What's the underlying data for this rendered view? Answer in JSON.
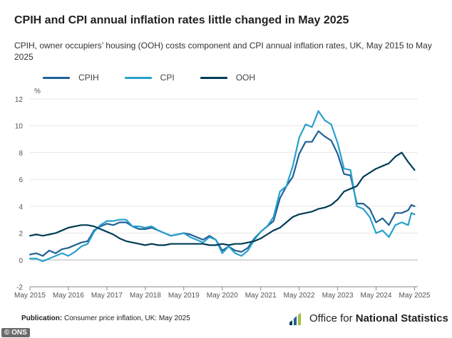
{
  "title": "CPIH and CPI annual inflation rates little changed in May 2025",
  "subtitle": "CPIH, owner occupiers’ housing (OOH) costs component and CPI annual inflation rates, UK, May 2015 to May 2025",
  "footer": {
    "publication_label": "Publication:",
    "publication_text": "Consumer price inflation, UK: May 2025"
  },
  "logo": {
    "name_prefix": "Office for ",
    "name_bold": "National Statistics",
    "icon": "ons-bars-icon"
  },
  "watermark": "© ONS",
  "chart_data": {
    "type": "line",
    "ylabel": "%",
    "ylim": [
      -2,
      12
    ],
    "yticks": [
      -2,
      0,
      2,
      4,
      6,
      8,
      10,
      12
    ],
    "xlim": [
      2015.333,
      2025.417
    ],
    "xticks": [
      {
        "label": "May 2015",
        "t": 2015.333
      },
      {
        "label": "May 2016",
        "t": 2016.333
      },
      {
        "label": "May 2017",
        "t": 2017.333
      },
      {
        "label": "May 2018",
        "t": 2018.333
      },
      {
        "label": "May 2019",
        "t": 2019.333
      },
      {
        "label": "May 2020",
        "t": 2020.333
      },
      {
        "label": "May 2021",
        "t": 2021.333
      },
      {
        "label": "May 2022",
        "t": 2022.333
      },
      {
        "label": "May 2023",
        "t": 2023.333
      },
      {
        "label": "May 2024",
        "t": 2024.333
      },
      {
        "label": "May 2025",
        "t": 2025.333
      }
    ],
    "grid": true,
    "legend_position": "top-left",
    "series": [
      {
        "name": "CPIH",
        "color": "#206095",
        "points": [
          [
            2015.333,
            0.4
          ],
          [
            2015.5,
            0.5
          ],
          [
            2015.667,
            0.3
          ],
          [
            2015.833,
            0.7
          ],
          [
            2016.0,
            0.5
          ],
          [
            2016.167,
            0.8
          ],
          [
            2016.333,
            0.9
          ],
          [
            2016.5,
            1.1
          ],
          [
            2016.667,
            1.3
          ],
          [
            2016.833,
            1.4
          ],
          [
            2017.0,
            2.2
          ],
          [
            2017.167,
            2.5
          ],
          [
            2017.333,
            2.7
          ],
          [
            2017.5,
            2.6
          ],
          [
            2017.667,
            2.8
          ],
          [
            2017.833,
            2.8
          ],
          [
            2018.0,
            2.5
          ],
          [
            2018.167,
            2.3
          ],
          [
            2018.333,
            2.3
          ],
          [
            2018.5,
            2.4
          ],
          [
            2018.667,
            2.2
          ],
          [
            2018.833,
            2.0
          ],
          [
            2019.0,
            1.8
          ],
          [
            2019.167,
            1.9
          ],
          [
            2019.333,
            2.0
          ],
          [
            2019.5,
            1.9
          ],
          [
            2019.667,
            1.7
          ],
          [
            2019.833,
            1.5
          ],
          [
            2020.0,
            1.8
          ],
          [
            2020.167,
            1.5
          ],
          [
            2020.333,
            0.7
          ],
          [
            2020.5,
            1.0
          ],
          [
            2020.667,
            0.7
          ],
          [
            2020.833,
            0.6
          ],
          [
            2021.0,
            0.9
          ],
          [
            2021.167,
            1.6
          ],
          [
            2021.333,
            2.1
          ],
          [
            2021.5,
            2.5
          ],
          [
            2021.667,
            2.9
          ],
          [
            2021.833,
            4.6
          ],
          [
            2022.0,
            5.5
          ],
          [
            2022.167,
            6.2
          ],
          [
            2022.333,
            7.9
          ],
          [
            2022.5,
            8.8
          ],
          [
            2022.667,
            8.8
          ],
          [
            2022.833,
            9.6
          ],
          [
            2023.0,
            9.2
          ],
          [
            2023.167,
            8.9
          ],
          [
            2023.333,
            7.9
          ],
          [
            2023.5,
            6.4
          ],
          [
            2023.667,
            6.3
          ],
          [
            2023.833,
            4.2
          ],
          [
            2024.0,
            4.2
          ],
          [
            2024.167,
            3.8
          ],
          [
            2024.333,
            2.8
          ],
          [
            2024.5,
            3.1
          ],
          [
            2024.667,
            2.6
          ],
          [
            2024.833,
            3.5
          ],
          [
            2025.0,
            3.5
          ],
          [
            2025.167,
            3.7
          ],
          [
            2025.25,
            4.1
          ],
          [
            2025.333,
            4.0
          ]
        ]
      },
      {
        "name": "CPI",
        "color": "#27a0cc",
        "points": [
          [
            2015.333,
            0.1
          ],
          [
            2015.5,
            0.1
          ],
          [
            2015.667,
            -0.1
          ],
          [
            2015.833,
            0.1
          ],
          [
            2016.0,
            0.3
          ],
          [
            2016.167,
            0.5
          ],
          [
            2016.333,
            0.3
          ],
          [
            2016.5,
            0.6
          ],
          [
            2016.667,
            1.0
          ],
          [
            2016.833,
            1.2
          ],
          [
            2017.0,
            2.1
          ],
          [
            2017.167,
            2.6
          ],
          [
            2017.333,
            2.9
          ],
          [
            2017.5,
            2.9
          ],
          [
            2017.667,
            3.0
          ],
          [
            2017.833,
            3.0
          ],
          [
            2018.0,
            2.5
          ],
          [
            2018.167,
            2.5
          ],
          [
            2018.333,
            2.4
          ],
          [
            2018.5,
            2.5
          ],
          [
            2018.667,
            2.2
          ],
          [
            2018.833,
            2.0
          ],
          [
            2019.0,
            1.8
          ],
          [
            2019.167,
            1.9
          ],
          [
            2019.333,
            2.0
          ],
          [
            2019.5,
            1.7
          ],
          [
            2019.667,
            1.5
          ],
          [
            2019.833,
            1.3
          ],
          [
            2020.0,
            1.7
          ],
          [
            2020.167,
            1.5
          ],
          [
            2020.333,
            0.5
          ],
          [
            2020.5,
            1.0
          ],
          [
            2020.667,
            0.5
          ],
          [
            2020.833,
            0.3
          ],
          [
            2021.0,
            0.7
          ],
          [
            2021.167,
            1.5
          ],
          [
            2021.333,
            2.1
          ],
          [
            2021.5,
            2.5
          ],
          [
            2021.667,
            3.2
          ],
          [
            2021.833,
            5.1
          ],
          [
            2022.0,
            5.5
          ],
          [
            2022.167,
            7.0
          ],
          [
            2022.333,
            9.1
          ],
          [
            2022.5,
            10.1
          ],
          [
            2022.667,
            9.9
          ],
          [
            2022.833,
            11.1
          ],
          [
            2023.0,
            10.4
          ],
          [
            2023.167,
            10.1
          ],
          [
            2023.333,
            8.7
          ],
          [
            2023.5,
            6.8
          ],
          [
            2023.667,
            6.7
          ],
          [
            2023.833,
            4.0
          ],
          [
            2024.0,
            3.8
          ],
          [
            2024.167,
            3.2
          ],
          [
            2024.333,
            2.0
          ],
          [
            2024.5,
            2.2
          ],
          [
            2024.667,
            1.7
          ],
          [
            2024.833,
            2.6
          ],
          [
            2025.0,
            2.8
          ],
          [
            2025.167,
            2.6
          ],
          [
            2025.25,
            3.5
          ],
          [
            2025.333,
            3.4
          ]
        ]
      },
      {
        "name": "OOH",
        "color": "#003c57",
        "points": [
          [
            2015.333,
            1.8
          ],
          [
            2015.5,
            1.9
          ],
          [
            2015.667,
            1.8
          ],
          [
            2015.833,
            1.9
          ],
          [
            2016.0,
            2.0
          ],
          [
            2016.167,
            2.2
          ],
          [
            2016.333,
            2.4
          ],
          [
            2016.5,
            2.5
          ],
          [
            2016.667,
            2.6
          ],
          [
            2016.833,
            2.6
          ],
          [
            2017.0,
            2.5
          ],
          [
            2017.167,
            2.3
          ],
          [
            2017.333,
            2.1
          ],
          [
            2017.5,
            1.9
          ],
          [
            2017.667,
            1.6
          ],
          [
            2017.833,
            1.4
          ],
          [
            2018.0,
            1.3
          ],
          [
            2018.167,
            1.2
          ],
          [
            2018.333,
            1.1
          ],
          [
            2018.5,
            1.2
          ],
          [
            2018.667,
            1.1
          ],
          [
            2018.833,
            1.1
          ],
          [
            2019.0,
            1.2
          ],
          [
            2019.167,
            1.2
          ],
          [
            2019.333,
            1.2
          ],
          [
            2019.5,
            1.2
          ],
          [
            2019.667,
            1.2
          ],
          [
            2019.833,
            1.2
          ],
          [
            2020.0,
            1.1
          ],
          [
            2020.167,
            1.1
          ],
          [
            2020.333,
            1.2
          ],
          [
            2020.5,
            1.1
          ],
          [
            2020.667,
            1.2
          ],
          [
            2020.833,
            1.2
          ],
          [
            2021.0,
            1.3
          ],
          [
            2021.167,
            1.4
          ],
          [
            2021.333,
            1.6
          ],
          [
            2021.5,
            1.9
          ],
          [
            2021.667,
            2.2
          ],
          [
            2021.833,
            2.4
          ],
          [
            2022.0,
            2.8
          ],
          [
            2022.167,
            3.2
          ],
          [
            2022.333,
            3.4
          ],
          [
            2022.5,
            3.5
          ],
          [
            2022.667,
            3.6
          ],
          [
            2022.833,
            3.8
          ],
          [
            2023.0,
            3.9
          ],
          [
            2023.167,
            4.1
          ],
          [
            2023.333,
            4.5
          ],
          [
            2023.5,
            5.1
          ],
          [
            2023.667,
            5.3
          ],
          [
            2023.833,
            5.5
          ],
          [
            2024.0,
            6.2
          ],
          [
            2024.167,
            6.5
          ],
          [
            2024.333,
            6.8
          ],
          [
            2024.5,
            7.0
          ],
          [
            2024.667,
            7.2
          ],
          [
            2024.833,
            7.7
          ],
          [
            2025.0,
            8.0
          ],
          [
            2025.167,
            7.3
          ],
          [
            2025.25,
            7.0
          ],
          [
            2025.333,
            6.7
          ]
        ]
      }
    ]
  }
}
